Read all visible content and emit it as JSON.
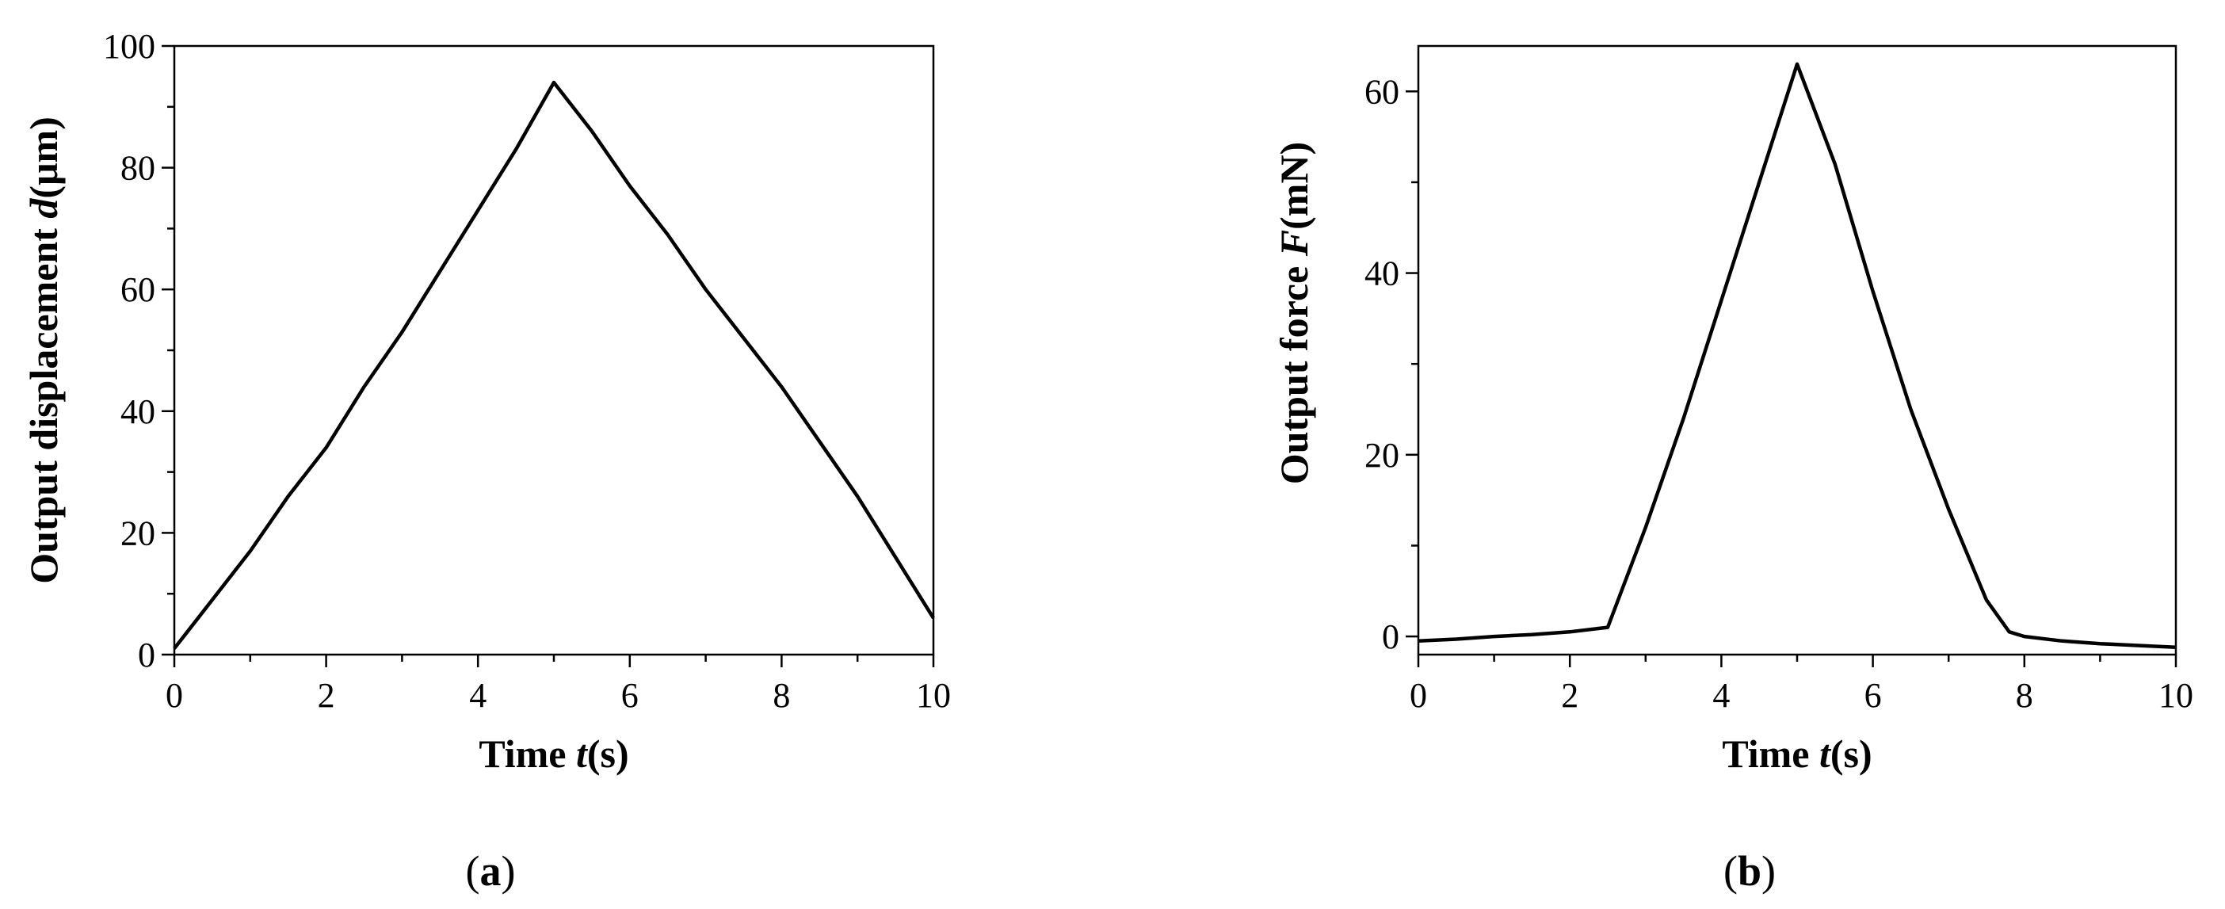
{
  "chart_data": [
    {
      "type": "line",
      "panel_label": "(a)",
      "xlabel": {
        "prefix": "Time ",
        "var": "t",
        "suffix": "(s)"
      },
      "ylabel": {
        "prefix": "Output displacement ",
        "var": "d",
        "suffix": "(μm)"
      },
      "xlim": [
        0,
        10
      ],
      "ylim": [
        0,
        100
      ],
      "xticks": [
        0,
        2,
        4,
        6,
        8,
        10
      ],
      "xtick_labels": [
        "0",
        "2",
        "4",
        "6",
        "8",
        "10"
      ],
      "yticks": [
        0,
        20,
        40,
        60,
        80,
        100
      ],
      "ytick_labels": [
        "0",
        "20",
        "40",
        "60",
        "80",
        "100"
      ],
      "grid": false,
      "series": [
        {
          "x": [
            0,
            0.5,
            1,
            1.5,
            2,
            2.5,
            3,
            3.5,
            4,
            4.5,
            5,
            5.5,
            6,
            6.5,
            7,
            7.5,
            8,
            8.5,
            9,
            9.5,
            10
          ],
          "y": [
            1,
            9,
            17,
            26,
            34,
            44,
            53,
            63,
            73,
            83,
            94,
            86,
            77,
            69,
            60,
            52,
            44,
            35,
            26,
            16,
            6
          ]
        }
      ]
    },
    {
      "type": "line",
      "panel_label": "(b)",
      "xlabel": {
        "prefix": "Time ",
        "var": "t",
        "suffix": "(s)"
      },
      "ylabel": {
        "prefix": "Output force ",
        "var": "F",
        "suffix": "(mN)"
      },
      "xlim": [
        0,
        10
      ],
      "ylim": [
        -2,
        65
      ],
      "xticks": [
        0,
        2,
        4,
        6,
        8,
        10
      ],
      "xtick_labels": [
        "0",
        "2",
        "4",
        "6",
        "8",
        "10"
      ],
      "yticks": [
        0,
        20,
        40,
        60
      ],
      "ytick_labels": [
        "0",
        "20",
        "40",
        "60"
      ],
      "grid": false,
      "series": [
        {
          "x": [
            0,
            0.5,
            1,
            1.5,
            2,
            2.5,
            3,
            3.5,
            4,
            4.5,
            5,
            5.5,
            6,
            6.5,
            7,
            7.5,
            7.8,
            8,
            8.5,
            9,
            9.5,
            10
          ],
          "y": [
            -0.5,
            -0.3,
            0,
            0.2,
            0.5,
            1,
            12,
            24,
            37,
            50,
            63,
            52,
            38,
            25,
            14,
            4,
            0.5,
            0,
            -0.5,
            -0.8,
            -1,
            -1.2
          ]
        }
      ]
    }
  ]
}
